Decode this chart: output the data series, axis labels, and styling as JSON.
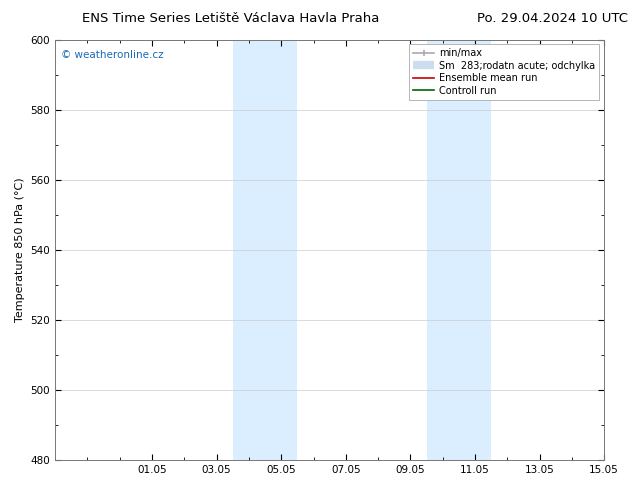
{
  "title_left": "ENS Time Series Letiště Václava Havla Praha",
  "title_right": "Po. 29.04.2024 10 UTC",
  "ylabel": "Temperature 850 hPa (°C)",
  "ylim": [
    480,
    600
  ],
  "yticks": [
    480,
    500,
    520,
    540,
    560,
    580,
    600
  ],
  "xlim_start": -1,
  "xlim_end": 16,
  "xtick_positions": [
    2,
    4,
    6,
    8,
    10,
    12,
    14,
    16
  ],
  "xtick_labels": [
    "01.05",
    "03.05",
    "05.05",
    "07.05",
    "09.05",
    "11.05",
    "13.05",
    "15.05"
  ],
  "shaded_bands": [
    {
      "xmin": 4.5,
      "xmax": 6.5,
      "color": "#daeeff"
    },
    {
      "xmin": 10.5,
      "xmax": 12.5,
      "color": "#daeeff"
    }
  ],
  "watermark_text": "© weatheronline.cz",
  "watermark_color": "#1a6ab5",
  "legend_entries": [
    {
      "label": "min/max",
      "color": "#aaaaaa",
      "lw": 1.5
    },
    {
      "label": "Sm  283;rodatn acute; odchylka",
      "color": "#cccccc",
      "lw": 5
    },
    {
      "label": "Ensemble mean run",
      "color": "#cc0000",
      "lw": 1.5
    },
    {
      "label": "Controll run",
      "color": "#006600",
      "lw": 1.5
    }
  ],
  "background_color": "#ffffff",
  "plot_bg_color": "#ffffff",
  "border_color": "#777777",
  "grid_color": "#cccccc",
  "title_fontsize": 9.5,
  "axis_label_fontsize": 8,
  "tick_fontsize": 7.5,
  "legend_fontsize": 7,
  "watermark_fontsize": 7.5
}
